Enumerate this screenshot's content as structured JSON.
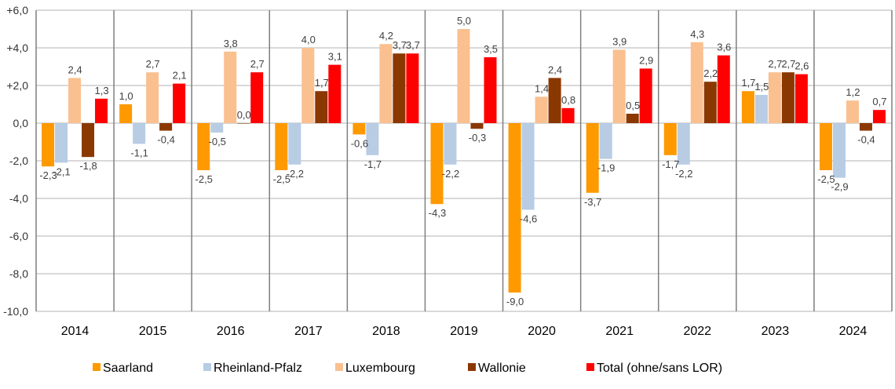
{
  "chart_data": {
    "type": "bar",
    "title": "",
    "xlabel": "",
    "ylabel": "",
    "ylim": [
      -10,
      6
    ],
    "yticks": [
      6,
      4,
      2,
      0,
      -2,
      -4,
      -6,
      -8,
      -10
    ],
    "ytick_labels": [
      "+6,0",
      "+4,0",
      "+2,0",
      "0,0",
      "-2,0",
      "-4,0",
      "-6,0",
      "-8,0",
      "-10,0"
    ],
    "grid": true,
    "legend_position": "bottom",
    "categories": [
      "2014",
      "2015",
      "2016",
      "2017",
      "2018",
      "2019",
      "2020",
      "2021",
      "2022",
      "2023",
      "2024"
    ],
    "series": [
      {
        "name": "Saarland",
        "color": "#FF9900",
        "values": [
          -2.3,
          1.0,
          -2.5,
          -2.5,
          -0.6,
          -4.3,
          -9.0,
          -3.7,
          -1.7,
          1.7,
          -2.5
        ]
      },
      {
        "name": "Rheinland-Pfalz",
        "color": "#B8CCE4",
        "values": [
          -2.1,
          -1.1,
          -0.5,
          -2.2,
          -1.7,
          -2.2,
          -4.6,
          -1.9,
          -2.2,
          1.5,
          -2.9
        ]
      },
      {
        "name": "Luxembourg",
        "color": "#FAC090",
        "values": [
          2.4,
          2.7,
          3.8,
          4.0,
          4.2,
          5.0,
          1.4,
          3.9,
          4.3,
          2.7,
          1.2
        ]
      },
      {
        "name": "Wallonie",
        "color": "#8B3700",
        "values": [
          -1.8,
          -0.4,
          0.0,
          1.7,
          3.7,
          -0.3,
          2.4,
          0.5,
          2.2,
          2.7,
          -0.4
        ]
      },
      {
        "name": "Total (ohne/sans LOR)",
        "color": "#FF0000",
        "values": [
          1.3,
          2.1,
          2.7,
          3.1,
          3.7,
          3.5,
          0.8,
          2.9,
          3.6,
          2.6,
          0.7
        ]
      }
    ]
  }
}
